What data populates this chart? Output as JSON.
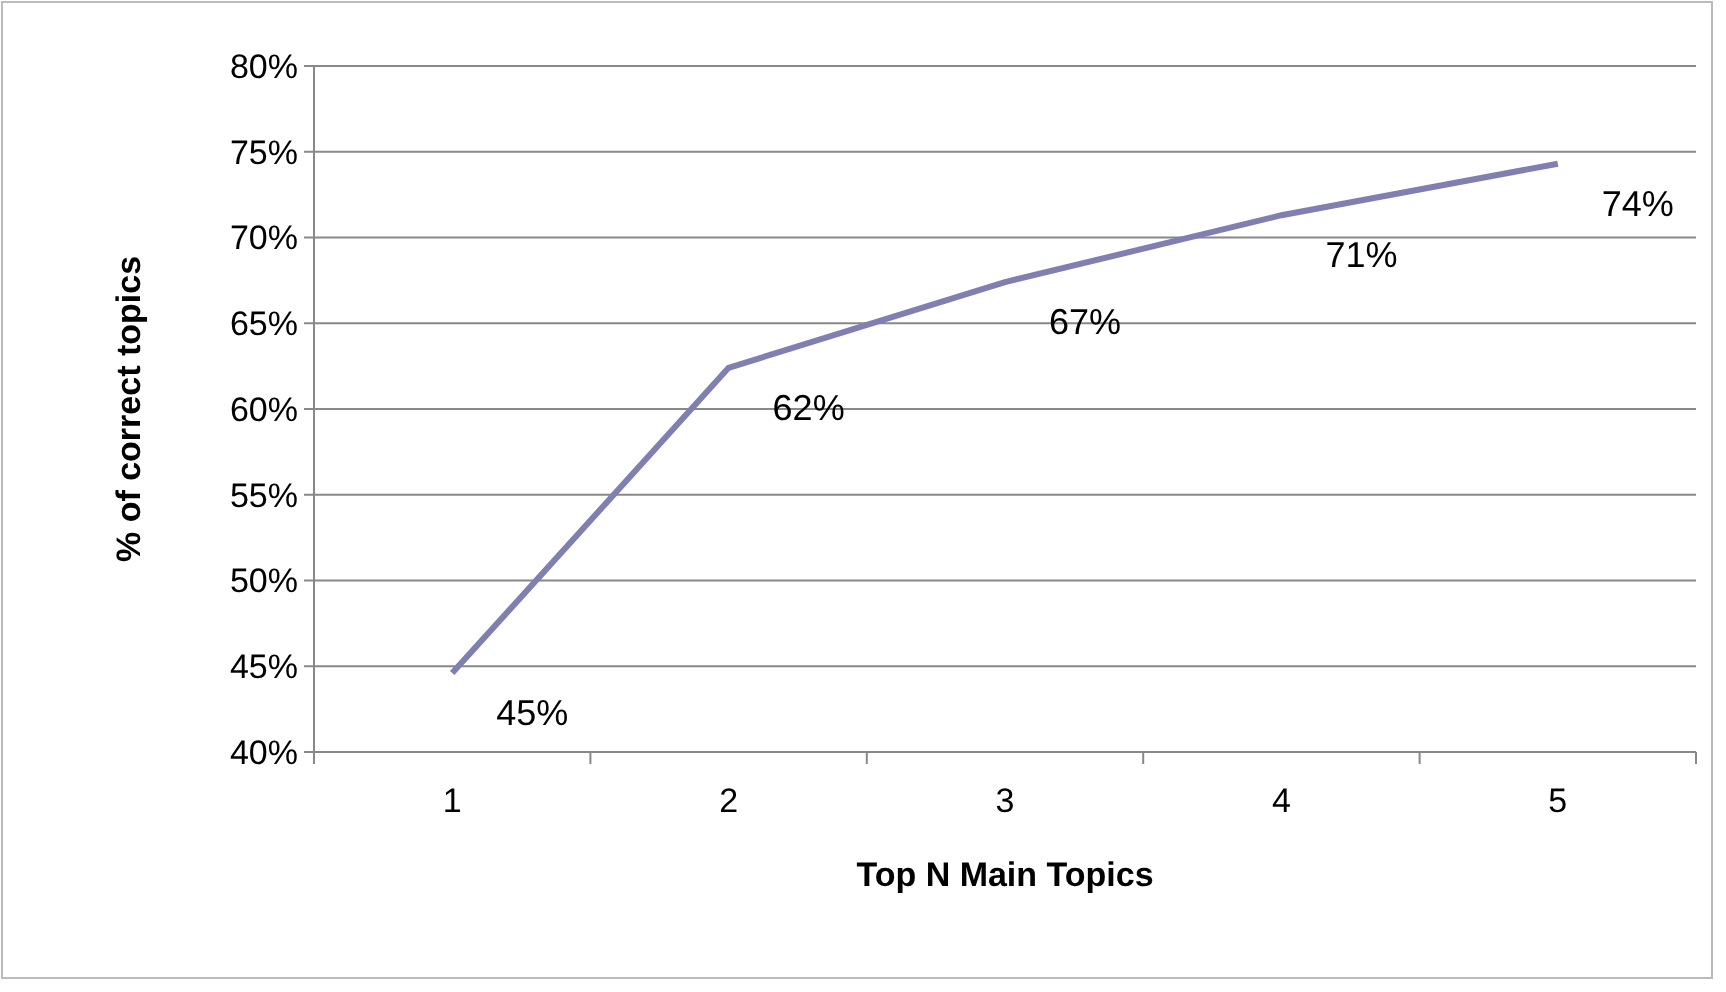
{
  "chart_data": {
    "type": "line",
    "xlabel": "Top N Main Topics",
    "ylabel": "% of correct topics",
    "categories": [
      "1",
      "2",
      "3",
      "4",
      "5"
    ],
    "series": [
      {
        "color": "#7f7fb2",
        "values": [
          44.6,
          62.4,
          67.4,
          71.3,
          74.3
        ],
        "value_labels": [
          "45%",
          "62%",
          "67%",
          "71%",
          "74%"
        ]
      }
    ],
    "ylim": [
      40,
      80
    ],
    "yticks": [
      {
        "value": 40,
        "label": "40%"
      },
      {
        "value": 45,
        "label": "45%"
      },
      {
        "value": 50,
        "label": "50%"
      },
      {
        "value": 55,
        "label": "55%"
      },
      {
        "value": 60,
        "label": "60%"
      },
      {
        "value": 65,
        "label": "65%"
      },
      {
        "value": 70,
        "label": "70%"
      },
      {
        "value": 75,
        "label": "75%"
      },
      {
        "value": 80,
        "label": "80%"
      }
    ],
    "grid": "y",
    "marker": "none",
    "line_style": "solid"
  }
}
